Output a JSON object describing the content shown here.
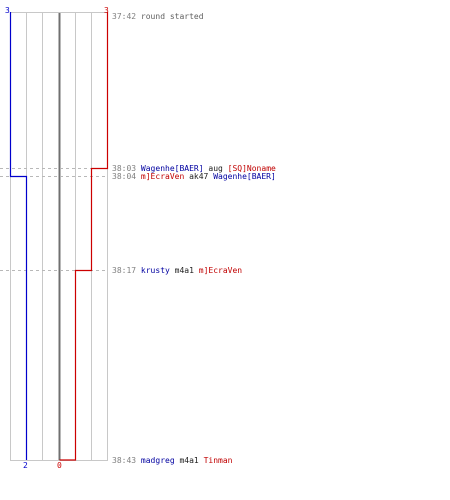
{
  "round": {
    "start_time": "37:42",
    "start_text": "round started"
  },
  "teams": {
    "blue": {
      "color": "#0000cc",
      "start_count": "3",
      "end_count": "2"
    },
    "red": {
      "color": "#cc0000",
      "start_count": "3",
      "end_count": "0"
    }
  },
  "events": [
    {
      "time": "38:03",
      "killer": "Wagenhe[BAER]",
      "killer_team": "blue",
      "weapon": "aug",
      "victim": "[SQ]Noname",
      "victim_team": "red"
    },
    {
      "time": "38:04",
      "killer": "m]EcraVen",
      "killer_team": "red",
      "weapon": "ak47",
      "victim": "Wagenhe[BAER]",
      "victim_team": "blue"
    },
    {
      "time": "38:17",
      "killer": "krusty",
      "killer_team": "blue",
      "weapon": "m4a1",
      "victim": "m]EcraVen",
      "victim_team": "red"
    },
    {
      "time": "38:43",
      "killer": "madgreg",
      "killer_team": "blue",
      "weapon": "m4a1",
      "victim": "Tinman",
      "victim_team": "red"
    }
  ]
}
